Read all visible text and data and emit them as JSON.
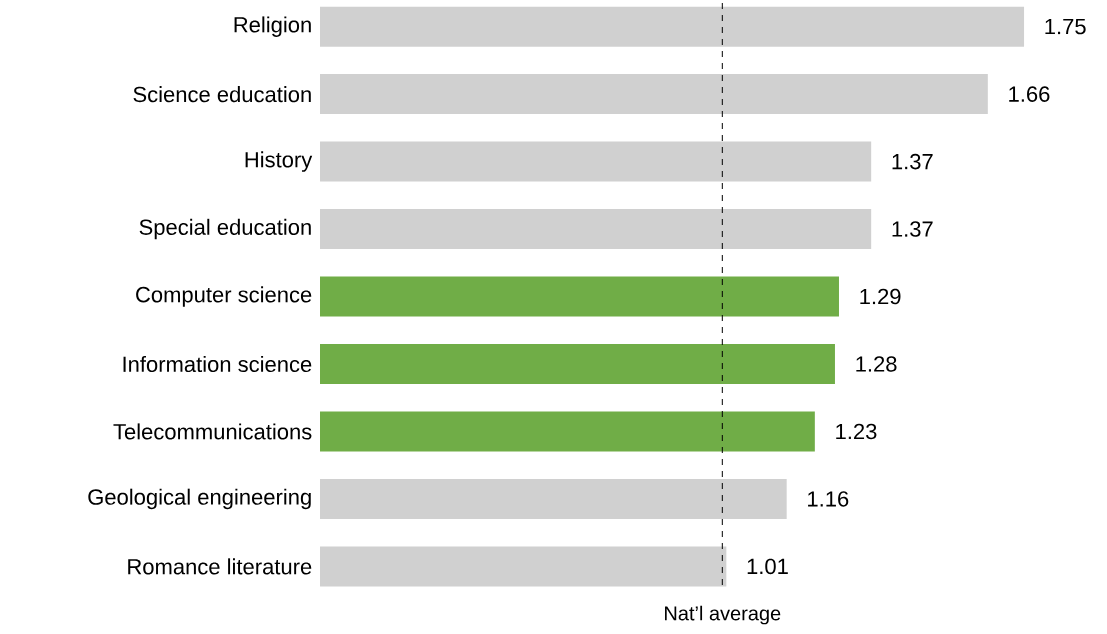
{
  "chart_data": {
    "type": "bar",
    "orientation": "horizontal",
    "categories": [
      "Religion",
      "Science education",
      "History",
      "Special education",
      "Computer science",
      "Information science",
      "Telecommunications",
      "Geological engineering",
      "Romance literature"
    ],
    "values": [
      1.75,
      1.66,
      1.37,
      1.37,
      1.29,
      1.28,
      1.23,
      1.16,
      1.01
    ],
    "colors": [
      "#d0d0d0",
      "#d0d0d0",
      "#d0d0d0",
      "#d0d0d0",
      "#70ad47",
      "#70ad47",
      "#70ad47",
      "#d0d0d0",
      "#d0d0d0"
    ],
    "data_labels": true,
    "ref_lines": [
      {
        "axis": "x",
        "value": 1,
        "label": "Nat’l average",
        "line_style": "dashed",
        "color": "#000000"
      }
    ]
  }
}
